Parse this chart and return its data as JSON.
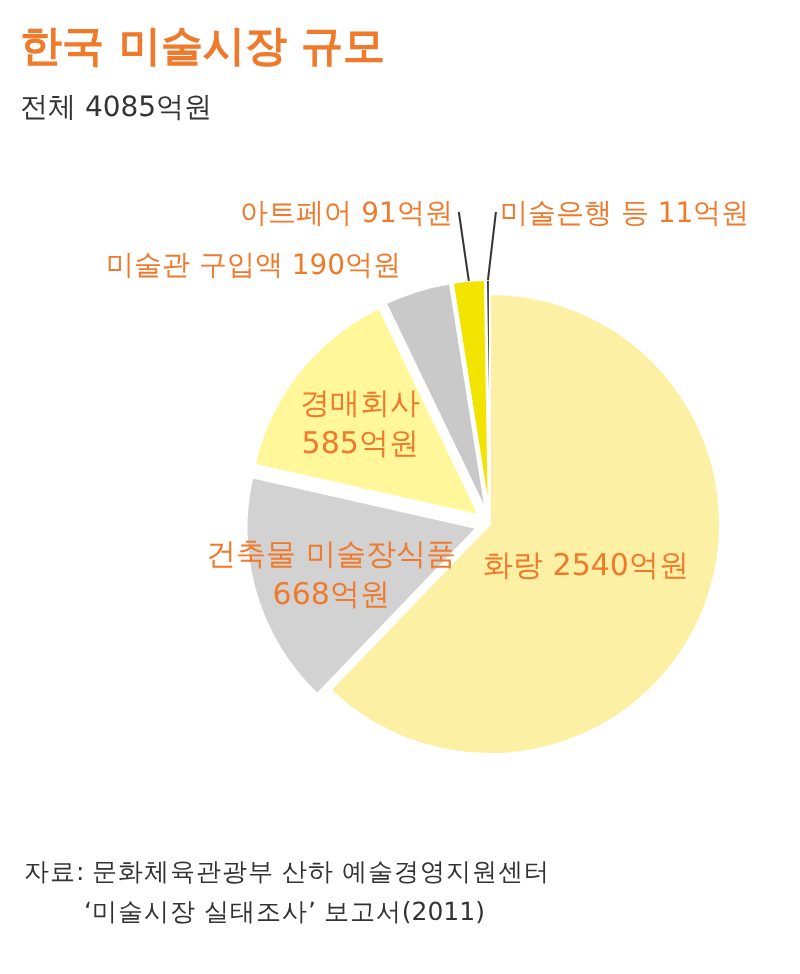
{
  "chart_data": {
    "type": "pie",
    "title": "한국 미술시장 규모",
    "subtitle": "전체 4085억원",
    "categories": [
      "화랑",
      "건축물 미술장식품",
      "경매회사",
      "미술관 구입액",
      "아트페어",
      "미술은행 등"
    ],
    "values": [
      2540,
      668,
      585,
      190,
      91,
      11
    ],
    "value_labels": [
      "2540억원",
      "668억원",
      "585억원",
      "190억원",
      "91억원",
      "11억원"
    ],
    "colors": [
      "#fbf0a4",
      "#d2d2d2",
      "#fff79a",
      "#c9c9c9",
      "#f3e300",
      "#333333"
    ],
    "annotations": [
      "자료: 문화체육관광부 산하 예술경영지원센터",
      "‘미술시장 실태조사’ 보고서(2011)"
    ]
  }
}
